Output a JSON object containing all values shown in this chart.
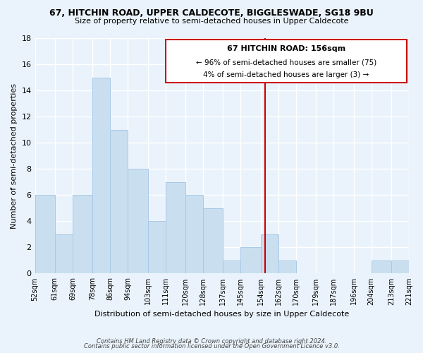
{
  "title": "67, HITCHIN ROAD, UPPER CALDECOTE, BIGGLESWADE, SG18 9BU",
  "subtitle": "Size of property relative to semi-detached houses in Upper Caldecote",
  "xlabel": "Distribution of semi-detached houses by size in Upper Caldecote",
  "ylabel": "Number of semi-detached properties",
  "bins": [
    52,
    61,
    69,
    78,
    86,
    94,
    103,
    111,
    120,
    128,
    137,
    145,
    154,
    162,
    170,
    179,
    187,
    196,
    204,
    213,
    221
  ],
  "counts": [
    6,
    3,
    6,
    15,
    11,
    8,
    4,
    7,
    6,
    5,
    1,
    2,
    3,
    1,
    0,
    0,
    0,
    0,
    1,
    1
  ],
  "bar_color": "#c9dff0",
  "bar_edge_color": "#a8c8e8",
  "vline_x": 156,
  "vline_color": "#cc0000",
  "ylim": [
    0,
    18
  ],
  "yticks": [
    0,
    2,
    4,
    6,
    8,
    10,
    12,
    14,
    16,
    18
  ],
  "annotation_title": "67 HITCHIN ROAD: 156sqm",
  "annotation_line1": "← 96% of semi-detached houses are smaller (75)",
  "annotation_line2": "4% of semi-detached houses are larger (3) →",
  "footer1": "Contains HM Land Registry data © Crown copyright and database right 2024.",
  "footer2": "Contains public sector information licensed under the Open Government Licence v3.0.",
  "background_color": "#eaf3fb",
  "tick_labels": [
    "52sqm",
    "61sqm",
    "69sqm",
    "78sqm",
    "86sqm",
    "94sqm",
    "103sqm",
    "111sqm",
    "120sqm",
    "128sqm",
    "137sqm",
    "145sqm",
    "154sqm",
    "162sqm",
    "170sqm",
    "179sqm",
    "187sqm",
    "196sqm",
    "204sqm",
    "213sqm",
    "221sqm"
  ]
}
